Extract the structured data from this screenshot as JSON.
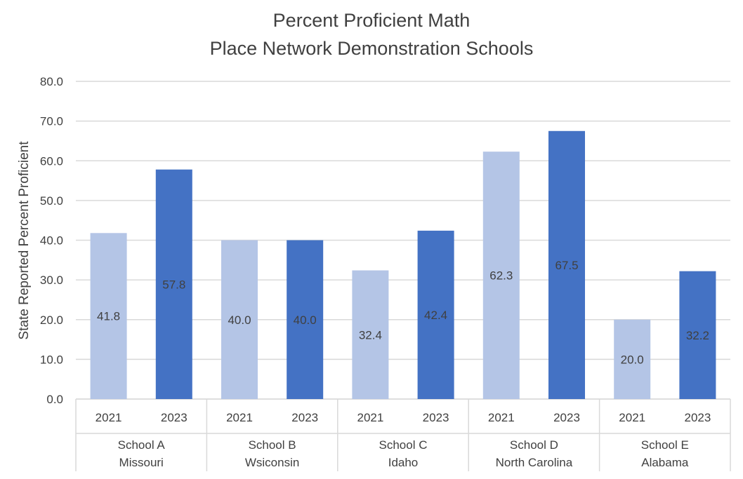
{
  "chart_data": {
    "type": "bar",
    "title": "Percent Proficient Math",
    "subtitle": "Place Network Demonstration Schools",
    "ylabel": "State Reported Percent Proficient",
    "xlabel": "",
    "ylim": [
      0,
      80
    ],
    "yticks": [
      "0.0",
      "10.0",
      "20.0",
      "30.0",
      "40.0",
      "50.0",
      "60.0",
      "70.0",
      "80.0"
    ],
    "grid": true,
    "groups": [
      {
        "school": "School A",
        "state": "Missouri",
        "years": [
          "2021",
          "2023"
        ],
        "values": [
          41.8,
          57.8
        ],
        "labels": [
          "41.8",
          "57.8"
        ]
      },
      {
        "school": "School B",
        "state": "Wsiconsin",
        "years": [
          "2021",
          "2023"
        ],
        "values": [
          40.0,
          40.0
        ],
        "labels": [
          "40.0",
          "40.0"
        ]
      },
      {
        "school": "School C",
        "state": "Idaho",
        "years": [
          "2021",
          "2023"
        ],
        "values": [
          32.4,
          42.4
        ],
        "labels": [
          "32.4",
          "42.4"
        ]
      },
      {
        "school": "School D",
        "state": "North Carolina",
        "years": [
          "2021",
          "2023"
        ],
        "values": [
          62.3,
          67.5
        ],
        "labels": [
          "62.3",
          "67.5"
        ]
      },
      {
        "school": "School E",
        "state": "Alabama",
        "years": [
          "2021",
          "2023"
        ],
        "values": [
          20.0,
          32.2
        ],
        "labels": [
          "20.0",
          "32.2"
        ]
      }
    ],
    "colors": {
      "2021": "#b4c5e6",
      "2023": "#4472c4",
      "grid": "#d9d9d9",
      "text": "#404040"
    }
  }
}
